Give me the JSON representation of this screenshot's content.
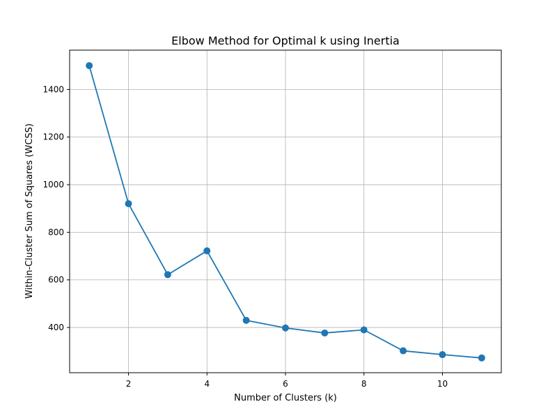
{
  "chart_data": {
    "type": "line",
    "title": "Elbow Method for Optimal k using Inertia",
    "xlabel": "Number of Clusters (k)",
    "ylabel": "Within-Cluster Sum of Squares (WCSS)",
    "xlim": [
      0.5,
      11.5
    ],
    "ylim": [
      210,
      1565
    ],
    "x_ticks": [
      2,
      4,
      6,
      8,
      10
    ],
    "y_ticks": [
      400,
      600,
      800,
      1000,
      1200,
      1400
    ],
    "grid": true,
    "series": [
      {
        "x": [
          1,
          2,
          3,
          4,
          5,
          6,
          7,
          8,
          9,
          10,
          11
        ],
        "y": [
          1500,
          920,
          622,
          722,
          430,
          398,
          377,
          390,
          302,
          286,
          272
        ],
        "marker": "circle",
        "color": "#1f77b4"
      }
    ]
  }
}
